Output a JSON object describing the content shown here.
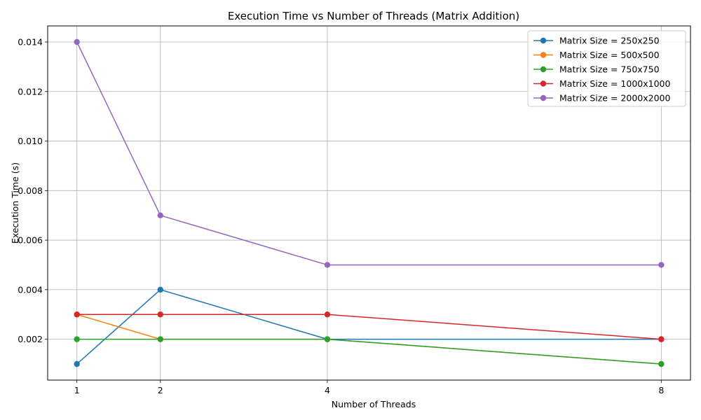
{
  "chart_data": {
    "type": "line",
    "title": "Execution Time vs Number of Threads (Matrix Addition)",
    "xlabel": "Number of Threads",
    "ylabel": "Execution Time (s)",
    "x": [
      1,
      2,
      4,
      8
    ],
    "x_ticks": [
      "1",
      "2",
      "4",
      "8"
    ],
    "xlim": [
      0.65,
      8.35
    ],
    "ylim": [
      0.00035,
      0.01465
    ],
    "y_ticks": [
      "0.002",
      "0.004",
      "0.006",
      "0.008",
      "0.010",
      "0.012",
      "0.014"
    ],
    "y_tick_values": [
      0.002,
      0.004,
      0.006,
      0.008,
      0.01,
      0.012,
      0.014
    ],
    "grid": true,
    "legend_position": "top-right",
    "marker": "circle",
    "series": [
      {
        "name": "Matrix Size = 250x250",
        "color": "#1f77b4",
        "values": [
          0.001,
          0.004,
          0.002,
          0.002
        ]
      },
      {
        "name": "Matrix Size = 500x500",
        "color": "#ff7f0e",
        "values": [
          0.003,
          0.002,
          0.002,
          0.001
        ]
      },
      {
        "name": "Matrix Size = 750x750",
        "color": "#2ca02c",
        "values": [
          0.002,
          0.002,
          0.002,
          0.001
        ]
      },
      {
        "name": "Matrix Size = 1000x1000",
        "color": "#d62728",
        "values": [
          0.003,
          0.003,
          0.003,
          0.002
        ]
      },
      {
        "name": "Matrix Size = 2000x2000",
        "color": "#9467bd",
        "values": [
          0.014,
          0.007,
          0.005,
          0.005
        ]
      }
    ]
  }
}
